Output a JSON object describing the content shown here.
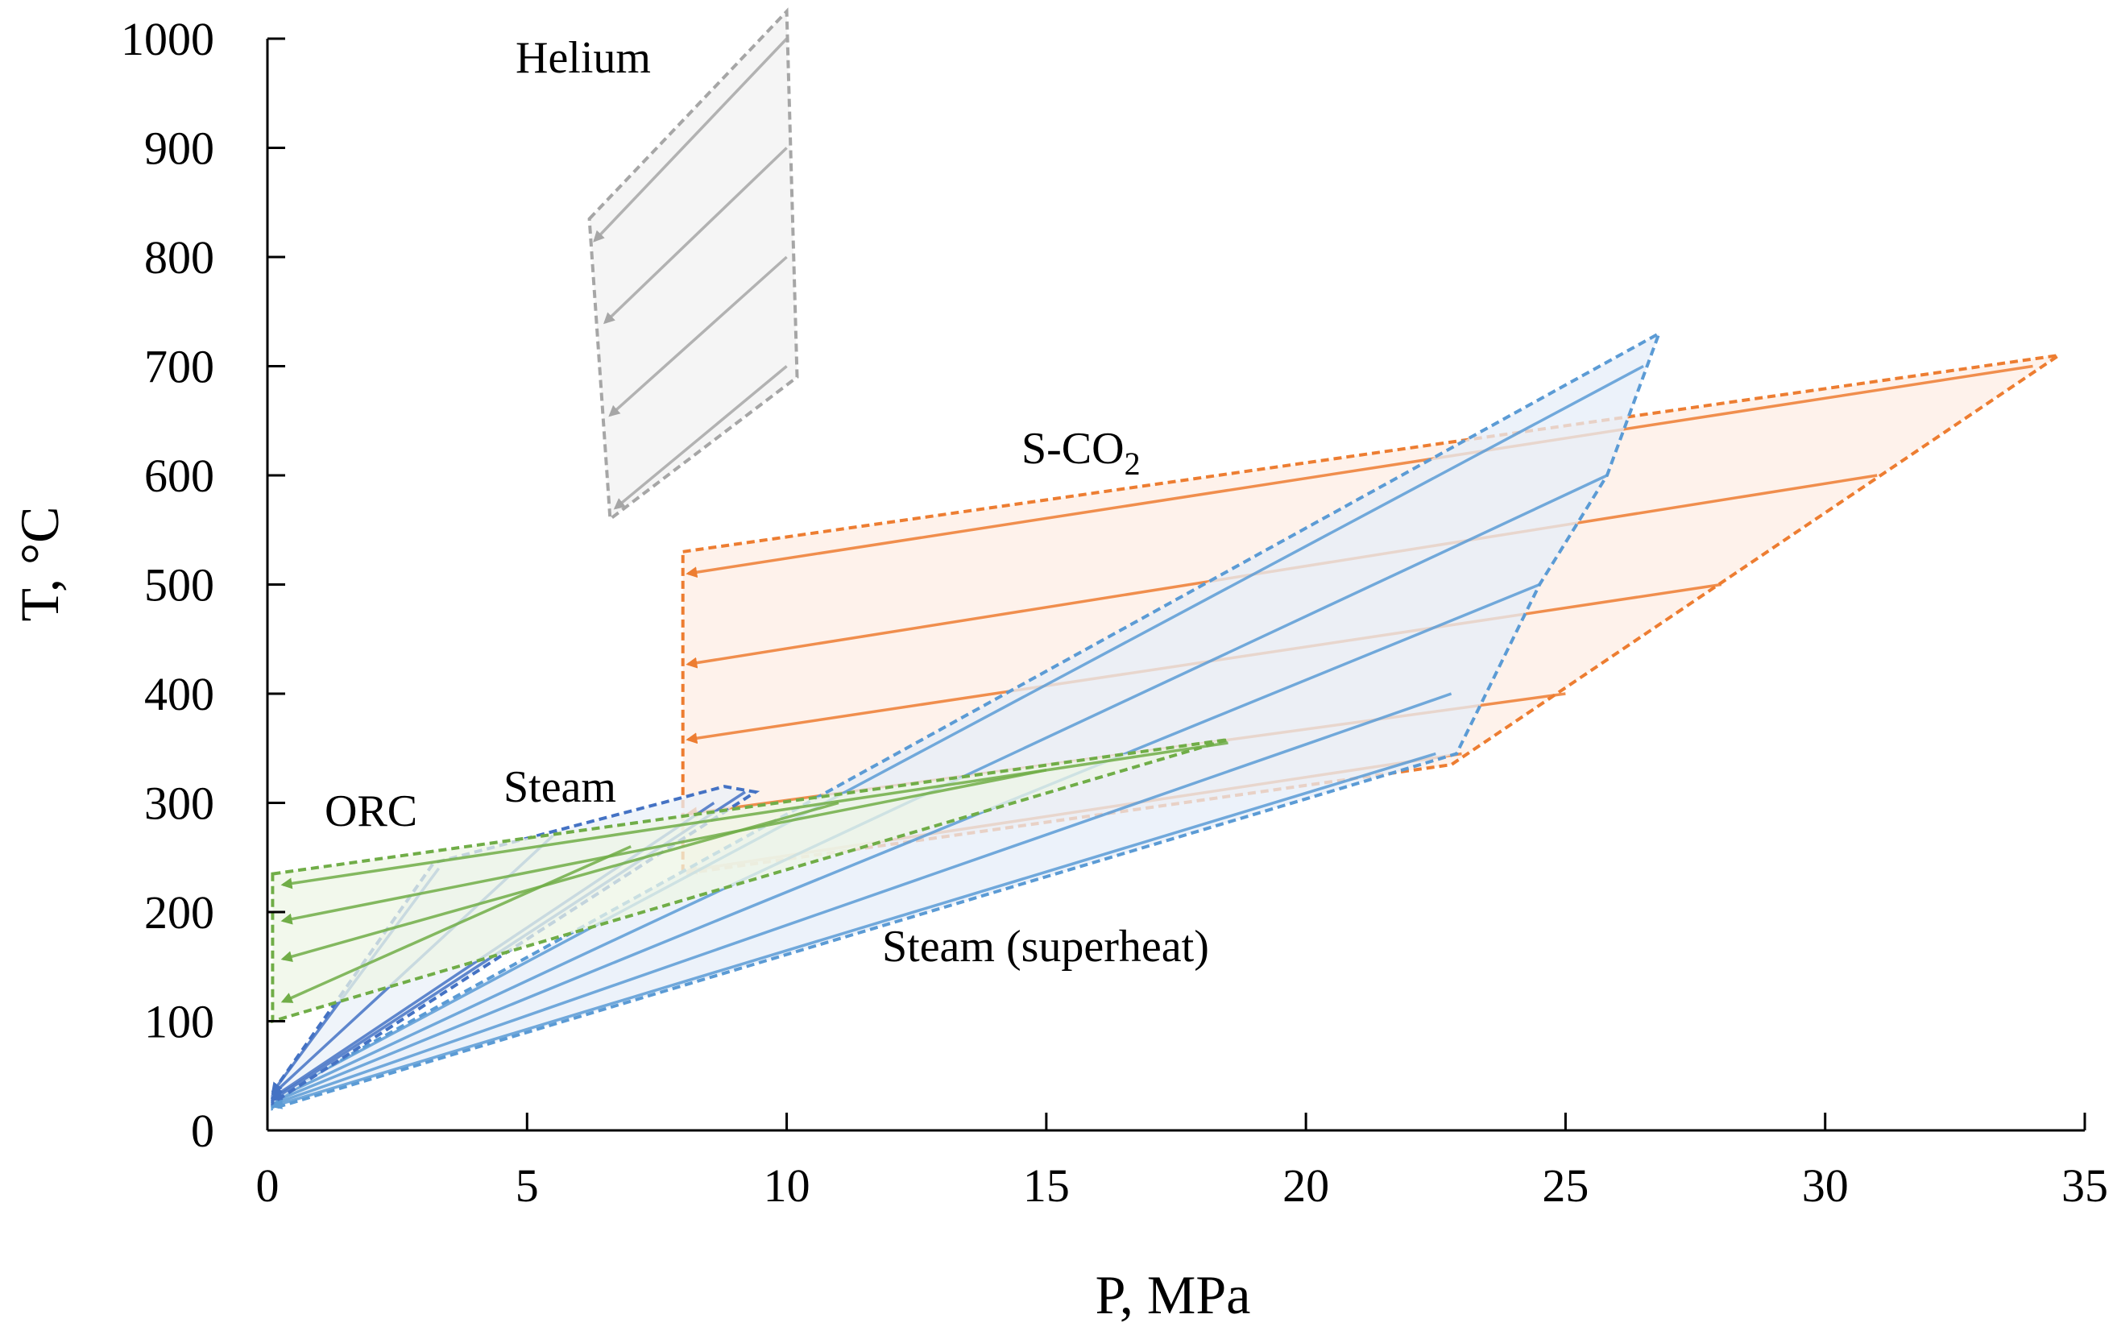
{
  "chart_data": {
    "type": "scatter",
    "title": "",
    "xlabel": "P, MPa",
    "ylabel": "T, °C",
    "xlim": [
      0,
      35
    ],
    "ylim": [
      0,
      1000
    ],
    "xticks": [
      0,
      5,
      10,
      15,
      20,
      25,
      30,
      35
    ],
    "yticks": [
      0,
      100,
      200,
      300,
      400,
      500,
      600,
      700,
      800,
      900,
      1000
    ],
    "grid": false,
    "colors": {
      "helium": "#a6a6a6",
      "sco2": "#ed7d31",
      "steam": "#4472c4",
      "steam_superheat": "#5b9bd5",
      "orc": "#70ad47"
    },
    "series": [
      {
        "name": "Helium",
        "label_main": "Helium",
        "label_sub": "",
        "label_position": "top-center",
        "color": "#a6a6a6",
        "fill": "#f2f2f2",
        "envelope": [
          [
            6.2,
            835
          ],
          [
            10.0,
            1025
          ],
          [
            10.2,
            690
          ],
          [
            6.6,
            560
          ]
        ],
        "paths": [
          {
            "x": [
              10.0,
              6.3
            ],
            "y": [
              1000,
              815
            ]
          },
          {
            "x": [
              10.0,
              6.5
            ],
            "y": [
              900,
              740
            ]
          },
          {
            "x": [
              10.0,
              6.6
            ],
            "y": [
              800,
              655
            ]
          },
          {
            "x": [
              10.0,
              6.7
            ],
            "y": [
              700,
              570
            ]
          }
        ]
      },
      {
        "name": "S-CO2",
        "label_main": "S-CO",
        "label_sub": "2",
        "label_position": "upper-middle",
        "color": "#ed7d31",
        "fill": "#fdeee4",
        "envelope": [
          [
            8.0,
            530
          ],
          [
            34.5,
            710
          ],
          [
            22.8,
            335
          ],
          [
            8.0,
            235
          ]
        ],
        "paths": [
          {
            "x": [
              34.0,
              8.1
            ],
            "y": [
              700,
              510
            ]
          },
          {
            "x": [
              31.0,
              8.1
            ],
            "y": [
              600,
              427
            ]
          },
          {
            "x": [
              28.0,
              8.1
            ],
            "y": [
              500,
              358
            ]
          },
          {
            "x": [
              25.0,
              8.1
            ],
            "y": [
              400,
              290
            ]
          },
          {
            "x": [
              23.0,
              8.1
            ],
            "y": [
              345,
              238
            ]
          }
        ]
      },
      {
        "name": "Steam (superheat)",
        "label_main": "Steam (superheat)",
        "label_sub": "",
        "label_position": "lower-middle",
        "color": "#5b9bd5",
        "fill": "#e6eef8",
        "envelope": [
          [
            0.1,
            30
          ],
          [
            26.8,
            730
          ],
          [
            25.8,
            600
          ],
          [
            24.5,
            500
          ],
          [
            22.9,
            345
          ],
          [
            0.1,
            20
          ]
        ],
        "paths": [
          {
            "x": [
              26.5,
              0.1
            ],
            "y": [
              700,
              30
            ]
          },
          {
            "x": [
              25.8,
              0.1
            ],
            "y": [
              600,
              28
            ]
          },
          {
            "x": [
              24.5,
              0.1
            ],
            "y": [
              500,
              26
            ]
          },
          {
            "x": [
              22.8,
              0.1
            ],
            "y": [
              400,
              24
            ]
          },
          {
            "x": [
              22.5,
              0.1
            ],
            "y": [
              345,
              22
            ]
          }
        ]
      },
      {
        "name": "Steam",
        "label_main": "Steam",
        "label_sub": "",
        "label_position": "left-middle",
        "color": "#4472c4",
        "fill": "#eaf0f8",
        "envelope": [
          [
            0.1,
            35
          ],
          [
            3.2,
            245
          ],
          [
            8.8,
            315
          ],
          [
            9.4,
            310
          ],
          [
            0.1,
            25
          ]
        ],
        "paths": [
          {
            "x": [
              3.3,
              0.1
            ],
            "y": [
              240,
              35
            ]
          },
          {
            "x": [
              5.5,
              0.1
            ],
            "y": [
              270,
              33
            ]
          },
          {
            "x": [
              8.6,
              0.1
            ],
            "y": [
              300,
              30
            ]
          },
          {
            "x": [
              9.2,
              0.1
            ],
            "y": [
              310,
              28
            ]
          }
        ]
      },
      {
        "name": "ORC",
        "label_main": "ORC",
        "label_sub": "",
        "label_position": "left",
        "color": "#70ad47",
        "fill": "#eef5e6",
        "envelope": [
          [
            0.1,
            235
          ],
          [
            18.5,
            358
          ],
          [
            0.1,
            100
          ]
        ],
        "paths": [
          {
            "x": [
              18.5,
              0.3
            ],
            "y": [
              355,
              225
            ]
          },
          {
            "x": [
              15.0,
              0.3
            ],
            "y": [
              330,
              192
            ]
          },
          {
            "x": [
              11.0,
              0.3
            ],
            "y": [
              300,
              157
            ]
          },
          {
            "x": [
              7.0,
              0.3
            ],
            "y": [
              260,
              118
            ]
          }
        ]
      }
    ]
  }
}
